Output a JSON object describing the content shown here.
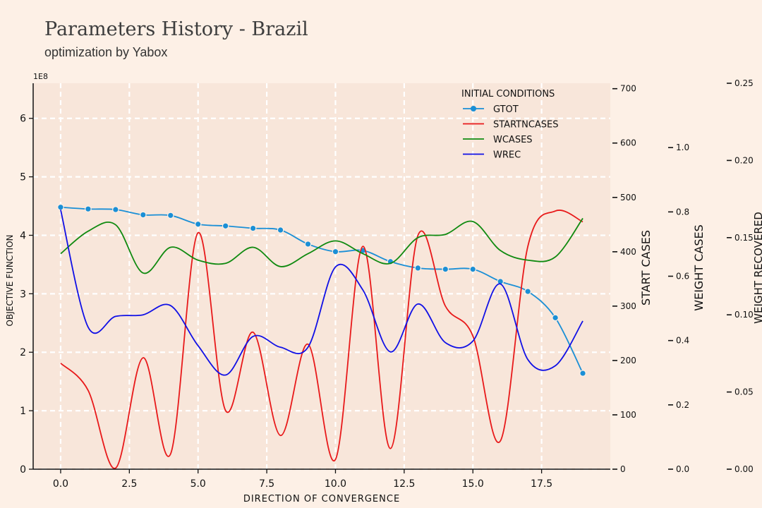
{
  "header": {
    "title": "Parameters History - Brazil",
    "subtitle": "optimization by Yabox"
  },
  "chart_data": {
    "type": "line",
    "xlabel": "direction of convergence",
    "x": [
      0,
      1,
      2,
      3,
      4,
      5,
      6,
      7,
      8,
      9,
      10,
      11,
      12,
      13,
      14,
      15,
      16,
      17,
      18,
      19
    ],
    "x_ticks": [
      "0.0",
      "2.5",
      "5.0",
      "7.5",
      "10.0",
      "12.5",
      "15.0",
      "17.5"
    ],
    "x_tick_values": [
      0,
      2.5,
      5,
      7.5,
      10,
      12.5,
      15,
      17.5
    ],
    "xlim": [
      -1,
      20
    ],
    "legend": {
      "title": "Initial Conditions",
      "placement": "top-right"
    },
    "grid": true,
    "axes": [
      {
        "id": "obj",
        "label": "objective function",
        "offset_label": "1e8",
        "lim": [
          0,
          6.6
        ],
        "ticks": [
          0,
          1,
          2,
          3,
          4,
          5,
          6
        ],
        "tick_labels": [
          "0",
          "1",
          "2",
          "3",
          "4",
          "5",
          "6"
        ],
        "side": "left"
      },
      {
        "id": "start",
        "label": "start cases",
        "lim": [
          0,
          710
        ],
        "ticks": [
          0,
          100,
          200,
          300,
          400,
          500,
          600,
          700
        ],
        "tick_labels": [
          "0",
          "100",
          "200",
          "300",
          "400",
          "500",
          "600",
          "700"
        ],
        "side": "right"
      },
      {
        "id": "wcases",
        "label": "weight cases",
        "lim": [
          0,
          1.2
        ],
        "ticks": [
          0,
          0.2,
          0.4,
          0.6,
          0.8,
          1.0
        ],
        "tick_labels": [
          "0.0",
          "0.2",
          "0.4",
          "0.6",
          "0.8",
          "1.0"
        ],
        "side": "right"
      },
      {
        "id": "wrec",
        "label": "weight recovered",
        "lim": [
          0,
          0.25
        ],
        "ticks": [
          0,
          0.05,
          0.1,
          0.15,
          0.2,
          0.25
        ],
        "tick_labels": [
          "0.00",
          "0.05",
          "0.10",
          "0.15",
          "0.20",
          "0.25"
        ],
        "side": "right"
      }
    ],
    "series": [
      {
        "name": "gtot",
        "axis": "obj",
        "color": "#1a8fd6",
        "markers": true,
        "values": [
          4.48,
          4.45,
          4.44,
          4.35,
          4.34,
          4.19,
          4.16,
          4.12,
          4.09,
          3.85,
          3.72,
          3.74,
          3.55,
          3.44,
          3.42,
          3.42,
          3.21,
          3.04,
          2.59,
          1.64
        ]
      },
      {
        "name": "startNCases",
        "axis": "start",
        "color": "#e8191a",
        "markers": false,
        "values": [
          195,
          145,
          2,
          205,
          28,
          435,
          108,
          252,
          62,
          230,
          18,
          410,
          38,
          430,
          300,
          245,
          52,
          410,
          475,
          455
        ]
      },
      {
        "name": "wcases",
        "axis": "wcases",
        "color": "#108a10",
        "markers": false,
        "values": [
          0.67,
          0.74,
          0.76,
          0.61,
          0.69,
          0.65,
          0.64,
          0.69,
          0.63,
          0.67,
          0.71,
          0.67,
          0.64,
          0.72,
          0.73,
          0.77,
          0.68,
          0.65,
          0.66,
          0.78
        ]
      },
      {
        "name": "wrec",
        "axis": "wrec",
        "color": "#1010e6",
        "markers": false,
        "values": [
          0.168,
          0.092,
          0.099,
          0.1,
          0.106,
          0.08,
          0.061,
          0.086,
          0.079,
          0.079,
          0.131,
          0.116,
          0.076,
          0.107,
          0.082,
          0.083,
          0.12,
          0.071,
          0.067,
          0.096
        ]
      }
    ]
  }
}
